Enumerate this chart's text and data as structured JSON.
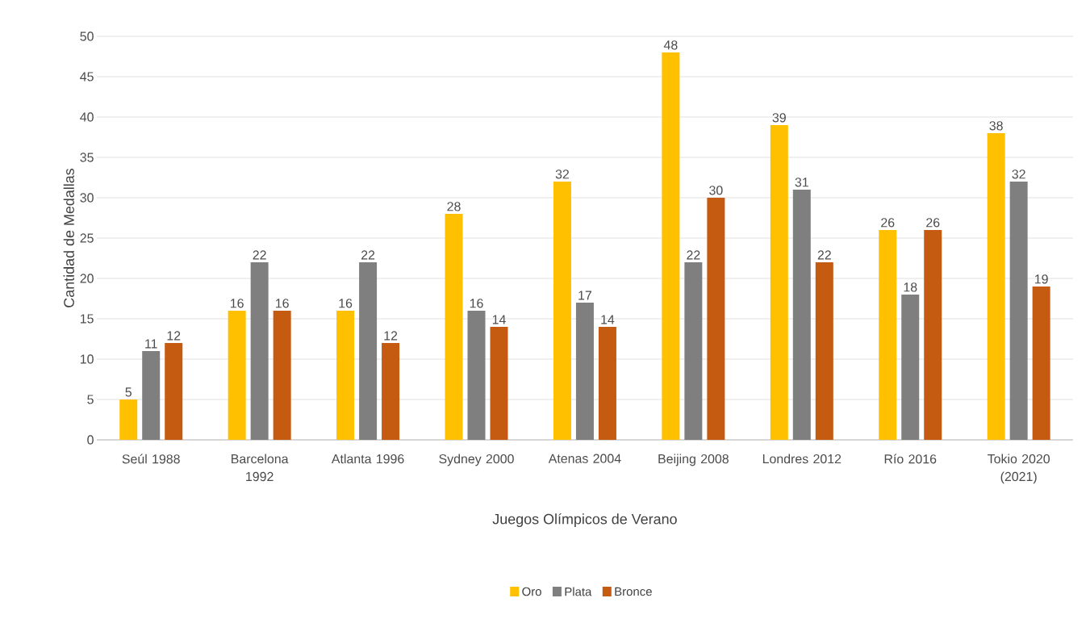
{
  "chart_data": {
    "type": "bar",
    "xlabel": "Juegos Olímpicos de Verano",
    "ylabel": "Cantidad de Medallas",
    "categories": [
      "Seúl 1988",
      "Barcelona 1992",
      "Atlanta 1996",
      "Sydney 2000",
      "Atenas 2004",
      "Beijing 2008",
      "Londres 2012",
      "Río 2016",
      "Tokio 2020 (2021)"
    ],
    "series": [
      {
        "name": "Oro",
        "color": "#ffc000",
        "values": [
          5,
          16,
          16,
          28,
          32,
          48,
          39,
          26,
          38
        ]
      },
      {
        "name": "Plata",
        "color": "#7f7f7f",
        "values": [
          11,
          22,
          22,
          16,
          17,
          22,
          31,
          18,
          32
        ]
      },
      {
        "name": "Bronce",
        "color": "#c55a11",
        "values": [
          12,
          16,
          12,
          14,
          14,
          30,
          22,
          26,
          19
        ]
      }
    ],
    "ylim": [
      0,
      50
    ],
    "yticks": [
      0,
      5,
      10,
      15,
      20,
      25,
      30,
      35,
      40,
      45,
      50
    ],
    "grid": "y",
    "legend": "bottom",
    "data_labels": true
  }
}
